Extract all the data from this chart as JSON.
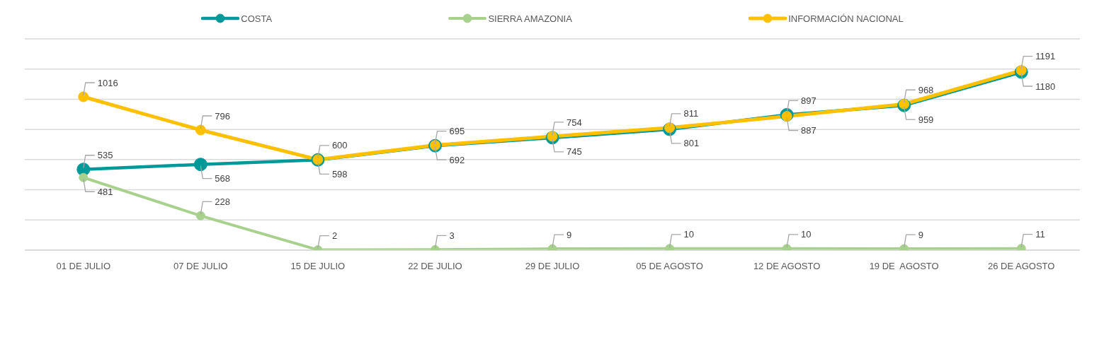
{
  "chart_data": {
    "type": "line",
    "categories": [
      "01 DE JULIO",
      "07 DE JULIO",
      "15 DE JULIO",
      "22 DE JULIO",
      "29 DE JULIO",
      "05 DE AGOSTO",
      "12 DE AGOSTO",
      "19 DE  AGOSTO",
      "26 DE AGOSTO"
    ],
    "series": [
      {
        "name": "COSTA",
        "color": "#009999",
        "values": [
          535,
          568,
          598,
          692,
          745,
          801,
          897,
          959,
          1180
        ]
      },
      {
        "name": "SIERRA AMAZONIA",
        "color": "#a9d18e",
        "values": [
          481,
          228,
          2,
          3,
          9,
          10,
          10,
          9,
          11
        ]
      },
      {
        "name": "INFORMACIÓN NACIONAL",
        "color": "#ffc000",
        "values": [
          1016,
          796,
          600,
          695,
          754,
          811,
          887,
          968,
          1191
        ]
      }
    ],
    "ylim": [
      0,
      1400
    ],
    "tick_labels": "x",
    "grid": "y",
    "legend": "top",
    "marker": "circle",
    "line_style": "solid",
    "data_labels": true
  }
}
